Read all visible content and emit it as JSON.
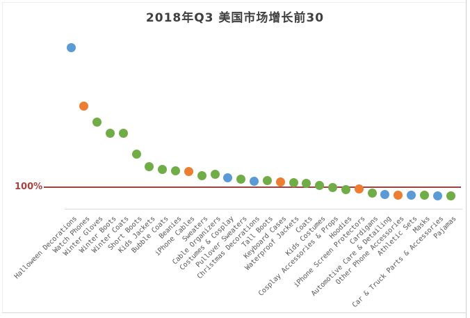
{
  "colors": {
    "blue": "#5b9bd5",
    "orange": "#ed7d31",
    "green": "#70ad47",
    "reference_red": "#9e4040",
    "reference_label_red": "#a8423f",
    "axis_gray": "#d9d9d9",
    "label_gray": "#595959",
    "title_gray": "#3f3f3f",
    "border_gray": "#cfcfcf"
  },
  "chart_data": {
    "type": "scatter",
    "title": "2018年Q3 美国市场增长前30",
    "xlabel": "",
    "ylabel": "",
    "legend": "none",
    "grid": "off",
    "ylim": [
      0,
      700
    ],
    "reference_line": {
      "label": "100%",
      "value": 100
    },
    "categories": [
      "Halloween Decorations",
      "Watch Phones",
      "Winter Gloves",
      "Winter Boots",
      "Winter Coats",
      "Short Boots",
      "Kids Jackets",
      "Bubble Coats",
      "Beanies",
      "iPhone Cables",
      "Sweaters",
      "Cable Organizers",
      "Costumes & Cosplay",
      "Pullover Sweaters",
      "Christmas Decorations",
      "Tall Boots",
      "Keyboard Cases",
      "Waterproof Jackets",
      "Coats",
      "Kids Costumes",
      "Cosplay Accessories & Props",
      "Hoodies",
      "iPhone Screen Protectors",
      "Cardigans",
      "Automotive Care & Detailing",
      "Other Phone Accessories",
      "Athletic Sets",
      "Masks",
      "Car & Truck Parts & Accessories",
      "Pajamas"
    ],
    "values": [
      691,
      444,
      376,
      329,
      328,
      241,
      188,
      176,
      170,
      165,
      150,
      153,
      140,
      135,
      126,
      128,
      121,
      118,
      117,
      106,
      100,
      91,
      94,
      76,
      68,
      65,
      65,
      65,
      64,
      62
    ],
    "point_colors": [
      "blue",
      "orange",
      "green",
      "green",
      "green",
      "green",
      "green",
      "green",
      "green",
      "orange",
      "green",
      "green",
      "blue",
      "green",
      "blue",
      "green",
      "orange",
      "green",
      "green",
      "green",
      "green",
      "green",
      "orange",
      "green",
      "blue",
      "orange",
      "blue",
      "green",
      "blue",
      "green"
    ]
  }
}
